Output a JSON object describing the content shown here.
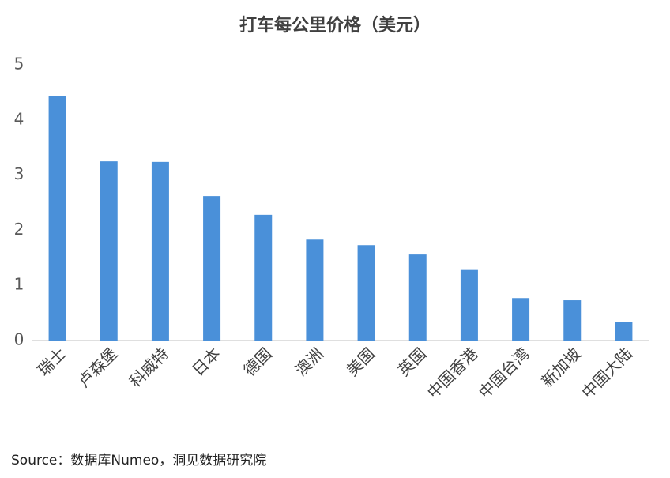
{
  "chart_data": {
    "type": "bar",
    "title": "打车每公里价格（美元）",
    "categories": [
      "瑞士",
      "卢森堡",
      "科威特",
      "日本",
      "德国",
      "澳洲",
      "美国",
      "英国",
      "中国香港",
      "中国台湾",
      "新加坡",
      "中国大陆"
    ],
    "values": [
      4.43,
      3.25,
      3.24,
      2.62,
      2.28,
      1.83,
      1.73,
      1.56,
      1.28,
      0.77,
      0.73,
      0.34
    ],
    "color": "#4a90d9",
    "ylim": [
      0,
      5
    ],
    "yticks": [
      0,
      1,
      2,
      3,
      4,
      5
    ],
    "grid": false,
    "source": "Source：数据库Numeo，洞见数据研究院"
  }
}
